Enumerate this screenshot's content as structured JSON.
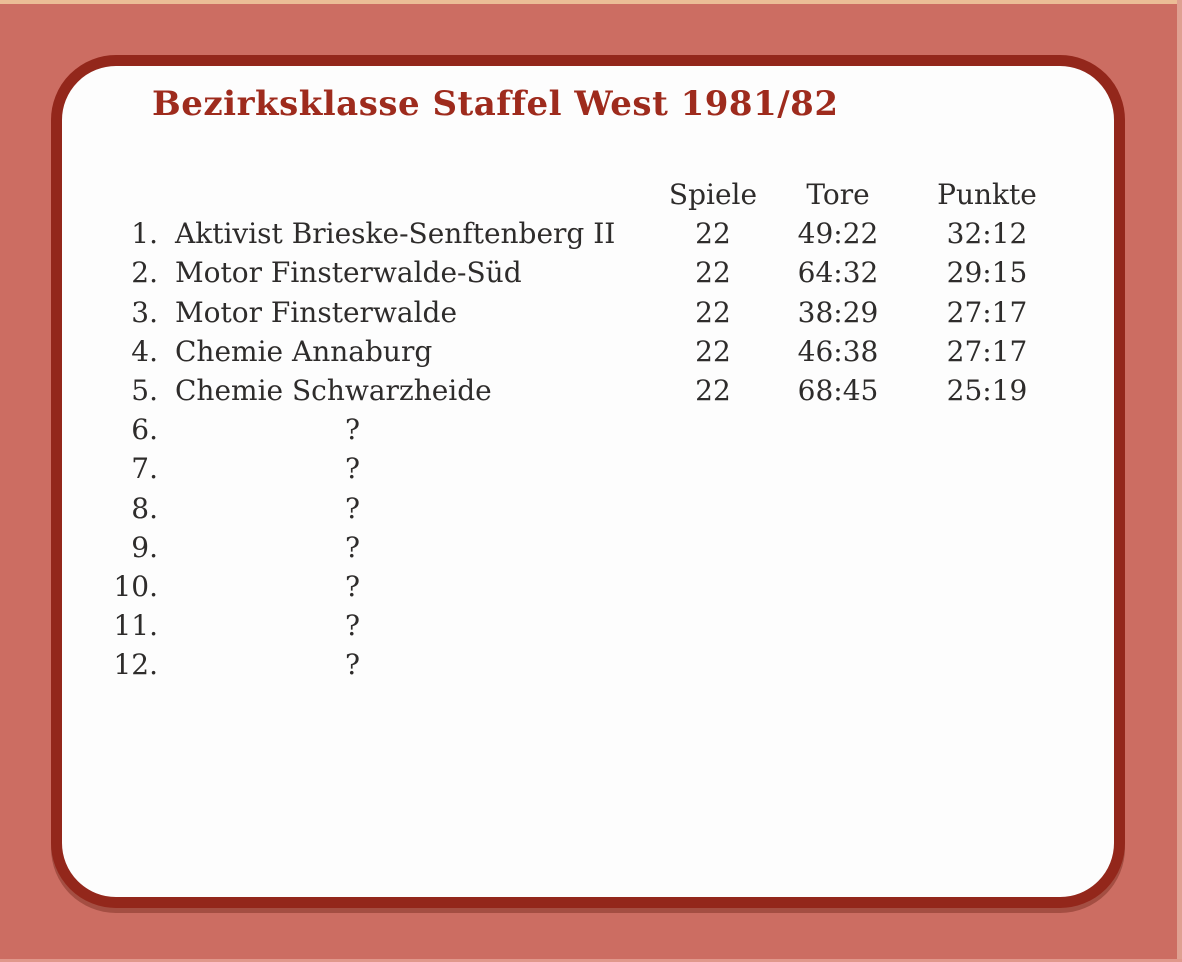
{
  "colors": {
    "page-bg": "#cc6d62",
    "card-bg": "#fdfdfd",
    "card-border": "#93271b",
    "title": "#9e2b1d",
    "text": "#2e2c2b",
    "edge-top": "#ebbd96",
    "edge-right": "#dfa091",
    "edge-bottom": "#e0988b"
  },
  "title": "Bezirksklasse Staffel West 1981/82",
  "table": {
    "headers": {
      "spiele": "Spiele",
      "tore": "Tore",
      "punkte": "Punkte"
    },
    "unknown_marker": "?",
    "rows": [
      {
        "pos": "1.",
        "name": "Aktivist Brieske-Senftenberg II",
        "spiele": "22",
        "tore": "49:22",
        "punkte": "32:12"
      },
      {
        "pos": "2.",
        "name": "Motor Finsterwalde-Süd",
        "spiele": "22",
        "tore": "64:32",
        "punkte": "29:15"
      },
      {
        "pos": "3.",
        "name": "Motor Finsterwalde",
        "spiele": "22",
        "tore": "38:29",
        "punkte": "27:17"
      },
      {
        "pos": "4.",
        "name": "Chemie Annaburg",
        "spiele": "22",
        "tore": "46:38",
        "punkte": "27:17"
      },
      {
        "pos": "5.",
        "name": "Chemie Schwarzheide",
        "spiele": "22",
        "tore": "68:45",
        "punkte": "25:19"
      },
      {
        "pos": "6.",
        "name": "?",
        "spiele": "",
        "tore": "",
        "punkte": ""
      },
      {
        "pos": "7.",
        "name": "?",
        "spiele": "",
        "tore": "",
        "punkte": ""
      },
      {
        "pos": "8.",
        "name": "?",
        "spiele": "",
        "tore": "",
        "punkte": ""
      },
      {
        "pos": "9.",
        "name": "?",
        "spiele": "",
        "tore": "",
        "punkte": ""
      },
      {
        "pos": "10.",
        "name": "?",
        "spiele": "",
        "tore": "",
        "punkte": ""
      },
      {
        "pos": "11.",
        "name": "?",
        "spiele": "",
        "tore": "",
        "punkte": ""
      },
      {
        "pos": "12.",
        "name": "?",
        "spiele": "",
        "tore": "",
        "punkte": ""
      }
    ]
  }
}
